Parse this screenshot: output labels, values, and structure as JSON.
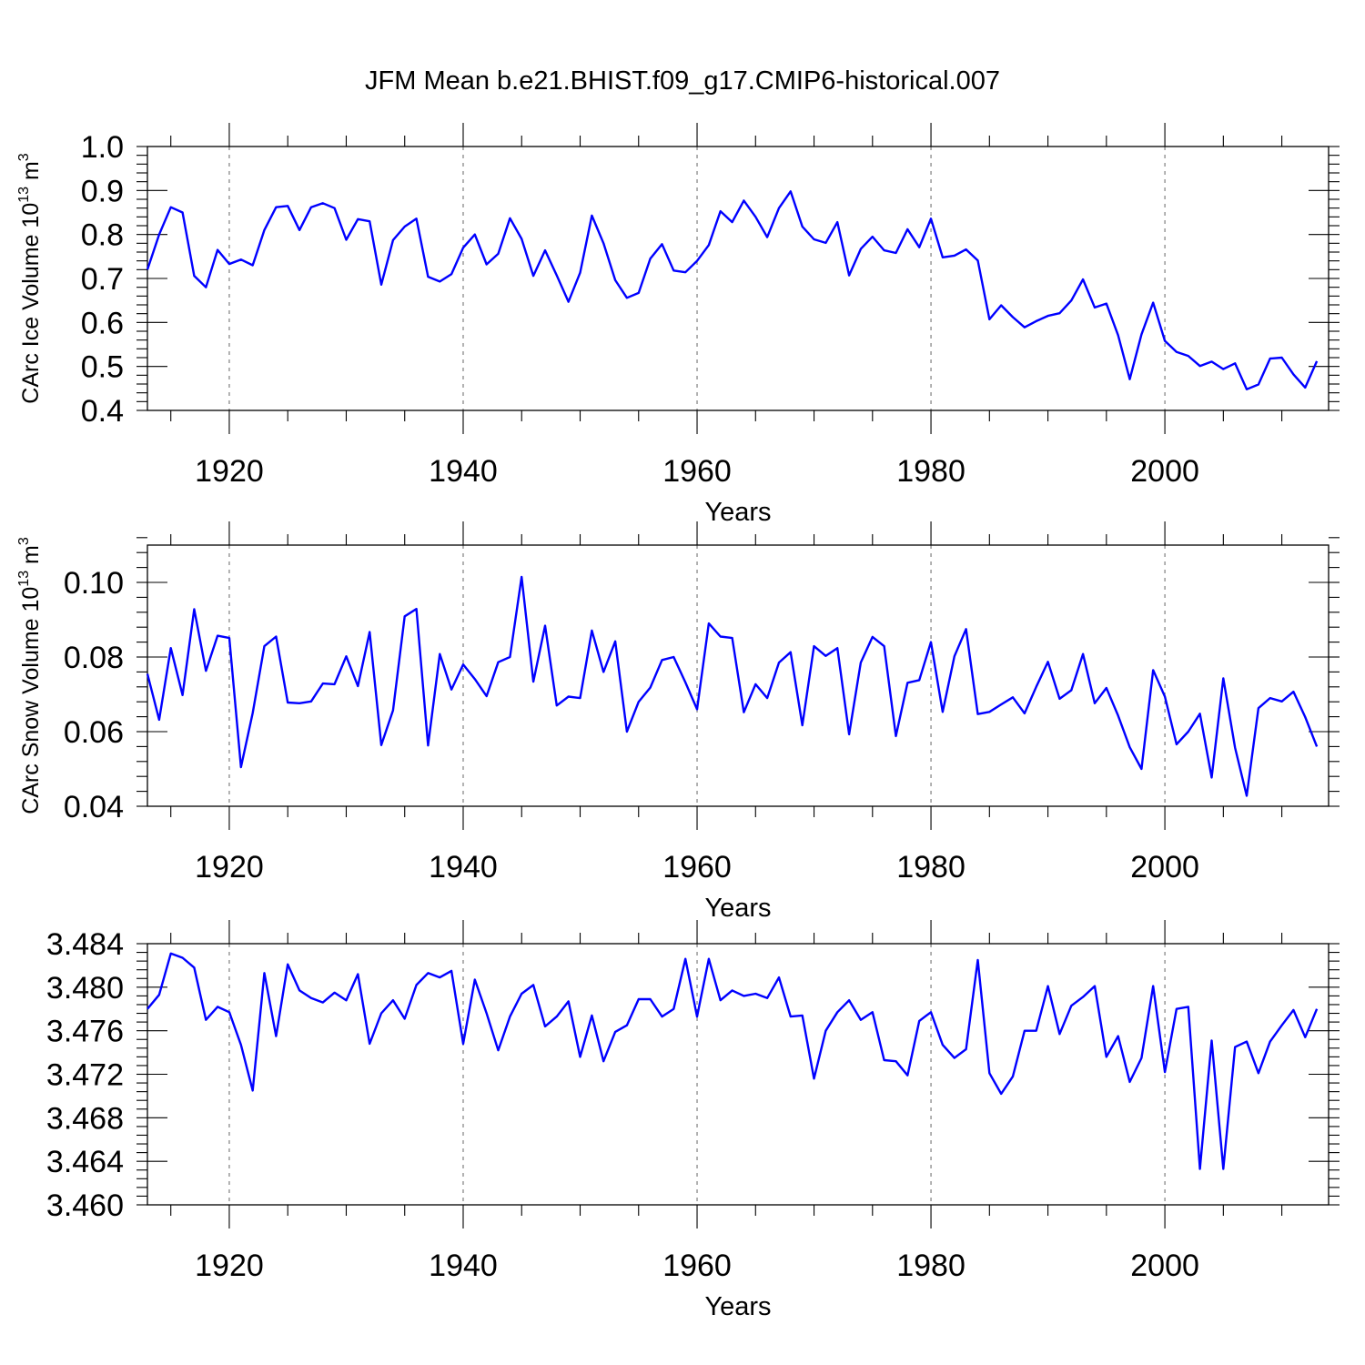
{
  "title": "JFM Mean b.e21.BHIST.f09_g17.CMIP6-historical.007",
  "chart_data": [
    {
      "type": "line",
      "name": "ice-volume",
      "ylabel": "CArc Ice Volume 10^13 m^3",
      "ylabel_parts": {
        "base": "CArc Ice Volume 10",
        "sup1": "13",
        "mid": " m",
        "sup2": "3"
      },
      "xlabel": "Years",
      "xlim": [
        1913,
        2014
      ],
      "ylim": [
        0.4,
        1.0
      ],
      "xticks": [
        1920,
        1940,
        1960,
        1980,
        2000
      ],
      "xtick_labels": [
        "1920",
        "1940",
        "1960",
        "1980",
        "2000"
      ],
      "yticks": [
        0.4,
        0.5,
        0.6,
        0.7,
        0.8,
        0.9,
        1.0
      ],
      "ytick_labels": [
        "0.4",
        "0.5",
        "0.6",
        "0.7",
        "0.8",
        "0.9",
        "1.0"
      ],
      "grid": "dashed vertical at major x ticks",
      "x_start": 1913,
      "values": [
        0.72,
        0.8,
        0.862,
        0.85,
        0.706,
        0.68,
        0.765,
        0.733,
        0.743,
        0.73,
        0.81,
        0.862,
        0.865,
        0.81,
        0.862,
        0.871,
        0.86,
        0.788,
        0.835,
        0.83,
        0.686,
        0.787,
        0.818,
        0.836,
        0.704,
        0.693,
        0.71,
        0.77,
        0.8,
        0.732,
        0.756,
        0.837,
        0.79,
        0.706,
        0.764,
        0.707,
        0.647,
        0.713,
        0.843,
        0.78,
        0.696,
        0.656,
        0.667,
        0.745,
        0.778,
        0.718,
        0.714,
        0.74,
        0.776,
        0.853,
        0.828,
        0.877,
        0.84,
        0.794,
        0.86,
        0.898,
        0.818,
        0.789,
        0.781,
        0.828,
        0.707,
        0.767,
        0.795,
        0.764,
        0.758,
        0.812,
        0.771,
        0.836,
        0.748,
        0.752,
        0.766,
        0.741,
        0.607,
        0.639,
        0.612,
        0.589,
        0.603,
        0.615,
        0.621,
        0.65,
        0.698,
        0.634,
        0.643,
        0.571,
        0.471,
        0.573,
        0.645,
        0.558,
        0.533,
        0.524,
        0.501,
        0.511,
        0.494,
        0.507,
        0.448,
        0.459,
        0.518,
        0.52,
        0.482,
        0.452,
        0.512
      ]
    },
    {
      "type": "line",
      "name": "snow-volume",
      "ylabel": "CArc Snow Volume 10^13 m^3",
      "ylabel_parts": {
        "base": "CArc Snow Volume 10",
        "sup1": "13",
        "mid": " m",
        "sup2": "3"
      },
      "xlabel": "Years",
      "xlim": [
        1913,
        2014
      ],
      "ylim": [
        0.04,
        0.11
      ],
      "xticks": [
        1920,
        1940,
        1960,
        1980,
        2000
      ],
      "xtick_labels": [
        "1920",
        "1940",
        "1960",
        "1980",
        "2000"
      ],
      "yticks": [
        0.04,
        0.06,
        0.08,
        0.1
      ],
      "ytick_labels": [
        "0.04",
        "0.06",
        "0.08",
        "0.10"
      ],
      "grid": "dashed vertical at major x ticks",
      "x_start": 1913,
      "values": [
        0.0755,
        0.0632,
        0.0824,
        0.0698,
        0.0928,
        0.0763,
        0.0857,
        0.0851,
        0.0505,
        0.065,
        0.0829,
        0.0855,
        0.0678,
        0.0676,
        0.0681,
        0.0729,
        0.0727,
        0.0802,
        0.0722,
        0.0867,
        0.0564,
        0.0657,
        0.0909,
        0.0929,
        0.0563,
        0.0808,
        0.0713,
        0.078,
        0.0741,
        0.0695,
        0.0786,
        0.08,
        0.1015,
        0.0734,
        0.0884,
        0.067,
        0.0694,
        0.069,
        0.0871,
        0.076,
        0.0842,
        0.06,
        0.068,
        0.0718,
        0.0792,
        0.08,
        0.0732,
        0.066,
        0.089,
        0.0855,
        0.0851,
        0.0652,
        0.0727,
        0.069,
        0.0785,
        0.0813,
        0.0617,
        0.0829,
        0.0803,
        0.0824,
        0.0593,
        0.0785,
        0.0854,
        0.0829,
        0.0588,
        0.0731,
        0.0738,
        0.084,
        0.0653,
        0.0802,
        0.0875,
        0.0647,
        0.0653,
        0.0673,
        0.0692,
        0.0649,
        0.072,
        0.0787,
        0.0688,
        0.0711,
        0.0808,
        0.0676,
        0.0717,
        0.0643,
        0.0558,
        0.05,
        0.0765,
        0.0694,
        0.0566,
        0.06,
        0.0648,
        0.0477,
        0.0743,
        0.0557,
        0.0428,
        0.0663,
        0.069,
        0.0681,
        0.0707,
        0.0639,
        0.056
      ]
    },
    {
      "type": "line",
      "name": "ice-area",
      "ylabel": "",
      "xlabel": "Years",
      "xlim": [
        1913,
        2014
      ],
      "ylim": [
        3.46,
        3.484
      ],
      "xticks": [
        1920,
        1940,
        1960,
        1980,
        2000
      ],
      "xtick_labels": [
        "1920",
        "1940",
        "1960",
        "1980",
        "2000"
      ],
      "yticks": [
        3.46,
        3.464,
        3.468,
        3.472,
        3.476,
        3.48,
        3.484
      ],
      "ytick_labels": [
        "3.460",
        "3.464",
        "3.468",
        "3.472",
        "3.476",
        "3.480",
        "3.484"
      ],
      "grid": "dashed vertical at major x ticks",
      "x_start": 1913,
      "values": [
        3.478,
        3.4793,
        3.4831,
        3.4827,
        3.4818,
        3.477,
        3.4782,
        3.4777,
        3.4747,
        3.4705,
        3.4813,
        3.4755,
        3.4821,
        3.4797,
        3.479,
        3.4786,
        3.4795,
        3.4788,
        3.4812,
        3.4748,
        3.4776,
        3.4788,
        3.4771,
        3.4802,
        3.4813,
        3.4809,
        3.4815,
        3.4748,
        3.4807,
        3.4776,
        3.4742,
        3.4773,
        3.4794,
        3.4802,
        3.4764,
        3.4773,
        3.4787,
        3.4736,
        3.4774,
        3.4732,
        3.4759,
        3.4765,
        3.4789,
        3.4789,
        3.4773,
        3.478,
        3.4826,
        3.4773,
        3.4826,
        3.4788,
        3.4797,
        3.4792,
        3.4794,
        3.479,
        3.4809,
        3.4773,
        3.4774,
        3.4716,
        3.476,
        3.4777,
        3.4788,
        3.477,
        3.4777,
        3.4733,
        3.4732,
        3.4719,
        3.4769,
        3.4777,
        3.4747,
        3.4735,
        3.4743,
        3.4825,
        3.4721,
        3.4702,
        3.4718,
        3.476,
        3.476,
        3.4801,
        3.4757,
        3.4783,
        3.4791,
        3.4801,
        3.4736,
        3.4755,
        3.4713,
        3.4735,
        3.4801,
        3.4722,
        3.478,
        3.4782,
        3.4633,
        3.4751,
        3.4633,
        3.4745,
        3.475,
        3.4721,
        3.475,
        3.4765,
        3.4779,
        3.4754,
        3.478
      ]
    }
  ]
}
